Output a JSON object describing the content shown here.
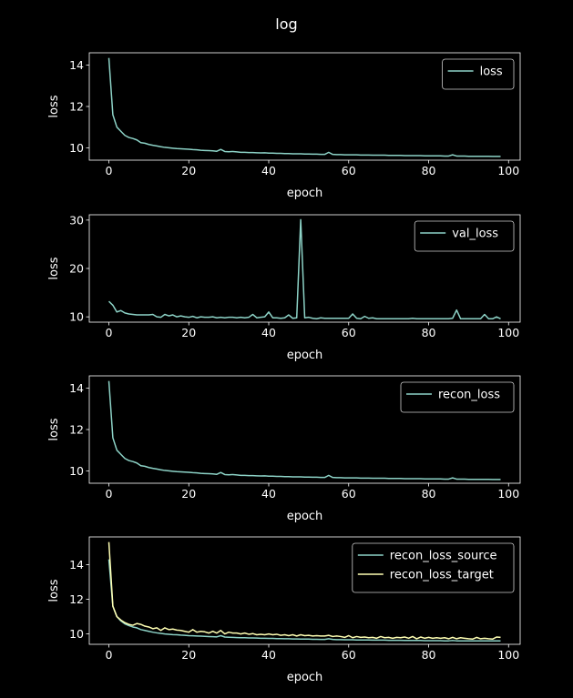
{
  "figure": {
    "title": "log"
  },
  "colors": {
    "background": "#000000",
    "axes": "#ffffff",
    "series_1": "#8dd3c7",
    "series_2": "#ffffb3"
  },
  "chart_data": [
    {
      "type": "line",
      "xlabel": "epoch",
      "ylabel": "loss",
      "xlim": [
        -4.9,
        102.9
      ],
      "ylim": [
        9.4,
        14.6
      ],
      "xticks": [
        0,
        20,
        40,
        60,
        80,
        100
      ],
      "yticks": [
        10,
        12,
        14
      ],
      "legend": "top-right",
      "series": [
        {
          "name": "loss",
          "color": "#8dd3c7",
          "y": [
            14.35,
            11.6,
            11.0,
            10.8,
            10.6,
            10.5,
            10.45,
            10.38,
            10.25,
            10.22,
            10.16,
            10.12,
            10.09,
            10.05,
            10.02,
            10.0,
            9.98,
            9.96,
            9.95,
            9.94,
            9.93,
            9.91,
            9.9,
            9.88,
            9.87,
            9.86,
            9.85,
            9.83,
            9.92,
            9.82,
            9.81,
            9.82,
            9.8,
            9.78,
            9.78,
            9.77,
            9.77,
            9.76,
            9.75,
            9.76,
            9.74,
            9.74,
            9.73,
            9.73,
            9.72,
            9.72,
            9.71,
            9.71,
            9.71,
            9.7,
            9.7,
            9.69,
            9.69,
            9.68,
            9.68,
            9.78,
            9.68,
            9.67,
            9.67,
            9.66,
            9.66,
            9.66,
            9.66,
            9.65,
            9.65,
            9.65,
            9.64,
            9.64,
            9.64,
            9.64,
            9.63,
            9.63,
            9.63,
            9.63,
            9.62,
            9.62,
            9.62,
            9.62,
            9.62,
            9.61,
            9.61,
            9.61,
            9.61,
            9.61,
            9.6,
            9.6,
            9.66,
            9.6,
            9.6,
            9.6,
            9.59,
            9.59,
            9.59,
            9.59,
            9.59,
            9.59,
            9.58,
            9.58,
            9.58
          ]
        }
      ]
    },
    {
      "type": "line",
      "xlabel": "epoch",
      "ylabel": "loss",
      "xlim": [
        -4.9,
        102.9
      ],
      "ylim": [
        8.9,
        31.1
      ],
      "xticks": [
        0,
        20,
        40,
        60,
        80,
        100
      ],
      "yticks": [
        10,
        20,
        30
      ],
      "legend": "top-right",
      "series": [
        {
          "name": "val_loss",
          "color": "#8dd3c7",
          "y": [
            13.2,
            12.4,
            11.0,
            11.3,
            10.8,
            10.6,
            10.5,
            10.4,
            10.4,
            10.4,
            10.4,
            10.5,
            10.0,
            9.9,
            10.5,
            10.2,
            10.4,
            10.0,
            10.2,
            10.0,
            9.9,
            10.1,
            9.8,
            10.0,
            9.9,
            9.9,
            10.0,
            9.8,
            9.9,
            9.8,
            9.9,
            9.9,
            9.8,
            9.9,
            9.8,
            9.9,
            10.5,
            9.8,
            9.9,
            10.0,
            11.0,
            9.8,
            9.8,
            9.7,
            9.8,
            10.4,
            9.7,
            9.8,
            30.1,
            9.8,
            9.9,
            9.7,
            9.6,
            9.8,
            9.7,
            9.7,
            9.7,
            9.7,
            9.7,
            9.7,
            9.7,
            10.6,
            9.7,
            9.6,
            10.1,
            9.7,
            9.8,
            9.6,
            9.6,
            9.6,
            9.6,
            9.6,
            9.6,
            9.6,
            9.6,
            9.6,
            9.7,
            9.6,
            9.6,
            9.6,
            9.6,
            9.6,
            9.6,
            9.6,
            9.6,
            9.6,
            9.7,
            11.4,
            9.6,
            9.6,
            9.6,
            9.6,
            9.6,
            9.6,
            10.5,
            9.6,
            9.6,
            10.0,
            9.6
          ]
        }
      ]
    },
    {
      "type": "line",
      "xlabel": "epoch",
      "ylabel": "loss",
      "xlim": [
        -4.9,
        102.9
      ],
      "ylim": [
        9.4,
        14.6
      ],
      "xticks": [
        0,
        20,
        40,
        60,
        80,
        100
      ],
      "yticks": [
        10,
        12,
        14
      ],
      "legend": "top-right",
      "series": [
        {
          "name": "recon_loss",
          "color": "#8dd3c7",
          "y": [
            14.35,
            11.6,
            11.0,
            10.8,
            10.6,
            10.5,
            10.45,
            10.38,
            10.25,
            10.22,
            10.16,
            10.12,
            10.09,
            10.05,
            10.02,
            10.0,
            9.98,
            9.96,
            9.95,
            9.94,
            9.93,
            9.91,
            9.9,
            9.88,
            9.87,
            9.86,
            9.85,
            9.83,
            9.92,
            9.82,
            9.81,
            9.82,
            9.8,
            9.78,
            9.78,
            9.77,
            9.77,
            9.76,
            9.75,
            9.76,
            9.74,
            9.74,
            9.73,
            9.73,
            9.72,
            9.72,
            9.71,
            9.71,
            9.71,
            9.7,
            9.7,
            9.69,
            9.69,
            9.68,
            9.68,
            9.78,
            9.68,
            9.67,
            9.67,
            9.66,
            9.66,
            9.66,
            9.66,
            9.65,
            9.65,
            9.65,
            9.64,
            9.64,
            9.64,
            9.64,
            9.63,
            9.63,
            9.63,
            9.63,
            9.62,
            9.62,
            9.62,
            9.62,
            9.62,
            9.61,
            9.61,
            9.61,
            9.61,
            9.61,
            9.6,
            9.6,
            9.66,
            9.6,
            9.6,
            9.6,
            9.59,
            9.59,
            9.59,
            9.59,
            9.59,
            9.59,
            9.58,
            9.58,
            9.58
          ]
        }
      ]
    },
    {
      "type": "line",
      "xlabel": "epoch",
      "ylabel": "loss",
      "xlim": [
        -4.9,
        102.9
      ],
      "ylim": [
        9.4,
        15.6
      ],
      "xticks": [
        0,
        20,
        40,
        60,
        80,
        100
      ],
      "yticks": [
        10,
        12,
        14
      ],
      "legend": "top-right",
      "series": [
        {
          "name": "recon_loss_source",
          "color": "#8dd3c7",
          "y": [
            14.3,
            11.6,
            11.0,
            10.75,
            10.58,
            10.48,
            10.4,
            10.35,
            10.25,
            10.2,
            10.15,
            10.1,
            10.06,
            10.03,
            10.0,
            9.98,
            9.96,
            9.95,
            9.93,
            9.92,
            9.9,
            9.89,
            9.88,
            9.87,
            9.86,
            9.85,
            9.84,
            9.83,
            9.9,
            9.82,
            9.81,
            9.8,
            9.79,
            9.78,
            9.78,
            9.77,
            9.77,
            9.76,
            9.75,
            9.75,
            9.74,
            9.74,
            9.73,
            9.73,
            9.72,
            9.72,
            9.71,
            9.71,
            9.7,
            9.7,
            9.7,
            9.69,
            9.69,
            9.68,
            9.68,
            9.72,
            9.68,
            9.67,
            9.67,
            9.66,
            9.66,
            9.66,
            9.65,
            9.65,
            9.65,
            9.65,
            9.64,
            9.64,
            9.64,
            9.64,
            9.63,
            9.63,
            9.63,
            9.63,
            9.62,
            9.62,
            9.62,
            9.62,
            9.62,
            9.61,
            9.61,
            9.61,
            9.61,
            9.61,
            9.6,
            9.6,
            9.62,
            9.6,
            9.6,
            9.6,
            9.6,
            9.6,
            9.6,
            9.6,
            9.6,
            9.6,
            9.6,
            9.6,
            9.6
          ]
        },
        {
          "name": "recon_loss_target",
          "color": "#ffffb3",
          "y": [
            15.3,
            11.6,
            11.0,
            10.8,
            10.65,
            10.55,
            10.5,
            10.6,
            10.55,
            10.45,
            10.4,
            10.3,
            10.35,
            10.2,
            10.35,
            10.25,
            10.28,
            10.22,
            10.2,
            10.15,
            10.1,
            10.25,
            10.1,
            10.15,
            10.12,
            10.05,
            10.15,
            10.05,
            10.2,
            10.0,
            10.1,
            10.05,
            10.05,
            10.0,
            10.05,
            9.98,
            10.02,
            9.95,
            9.98,
            9.95,
            10.0,
            9.95,
            9.98,
            9.92,
            9.95,
            9.9,
            9.95,
            9.88,
            9.95,
            9.9,
            9.92,
            9.88,
            9.9,
            9.88,
            9.88,
            9.92,
            9.85,
            9.88,
            9.85,
            9.8,
            9.9,
            9.78,
            9.85,
            9.8,
            9.82,
            9.78,
            9.8,
            9.75,
            9.85,
            9.78,
            9.8,
            9.75,
            9.8,
            9.78,
            9.82,
            9.75,
            9.85,
            9.72,
            9.82,
            9.75,
            9.8,
            9.75,
            9.78,
            9.75,
            9.78,
            9.72,
            9.8,
            9.72,
            9.78,
            9.75,
            9.72,
            9.7,
            9.8,
            9.72,
            9.75,
            9.72,
            9.7,
            9.82,
            9.8
          ]
        }
      ]
    }
  ]
}
